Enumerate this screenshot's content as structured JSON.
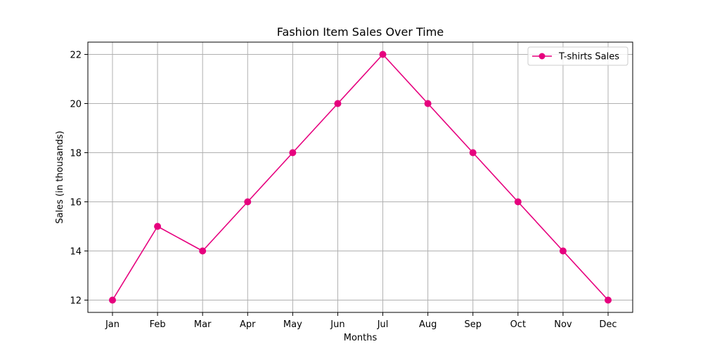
{
  "chart_data": {
    "type": "line",
    "title": "Fashion Item Sales Over Time",
    "xlabel": "Months",
    "ylabel": "Sales (in thousands)",
    "categories": [
      "Jan",
      "Feb",
      "Mar",
      "Apr",
      "May",
      "Jun",
      "Jul",
      "Aug",
      "Sep",
      "Oct",
      "Nov",
      "Dec"
    ],
    "series": [
      {
        "name": "T-shirts Sales",
        "values": [
          12,
          15,
          14,
          16,
          18,
          20,
          22,
          20,
          18,
          16,
          14,
          12
        ],
        "color": "#e6007e",
        "marker": "circle"
      }
    ],
    "ylim": [
      11.5,
      22.5
    ],
    "yticks": [
      12,
      14,
      16,
      18,
      20,
      22
    ],
    "grid": true,
    "legend_position": "top-right"
  }
}
